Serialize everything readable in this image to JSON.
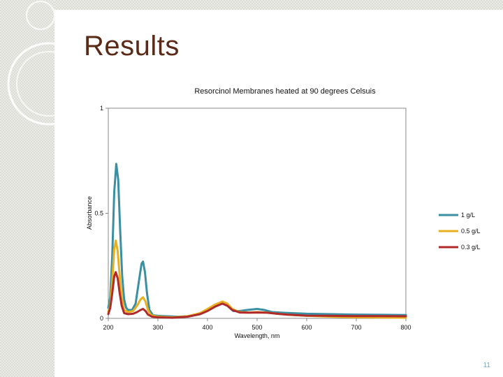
{
  "slide": {
    "title": "Results",
    "number": "11"
  },
  "colors": {
    "title": "#5a2a17",
    "series_1gL": "#3b8fa3",
    "series_05gL": "#e8b01e",
    "series_03gL": "#b02a2a",
    "slide_number": "#7aa9ba"
  },
  "chart_data": {
    "type": "line",
    "title": "Resorcinol Membranes heated at 90 degrees Celsuis",
    "xlabel": "Wavelength, nm",
    "ylabel": "Absorbance",
    "xlim": [
      200,
      800
    ],
    "ylim": [
      0,
      1
    ],
    "xticks": [
      "200",
      "300",
      "400",
      "500",
      "600",
      "700",
      "800"
    ],
    "yticks": [
      "0",
      "0.5",
      "1"
    ],
    "grid": false,
    "legend_position": "right",
    "series": [
      {
        "name": "1 g/L",
        "color": "#3b8fa3",
        "points": [
          [
            200,
            0.05
          ],
          [
            204,
            0.1
          ],
          [
            208,
            0.3
          ],
          [
            212,
            0.6
          ],
          [
            216,
            0.735
          ],
          [
            220,
            0.66
          ],
          [
            224,
            0.42
          ],
          [
            228,
            0.2
          ],
          [
            232,
            0.09
          ],
          [
            236,
            0.05
          ],
          [
            240,
            0.04
          ],
          [
            248,
            0.04
          ],
          [
            255,
            0.07
          ],
          [
            262,
            0.18
          ],
          [
            267,
            0.26
          ],
          [
            270,
            0.27
          ],
          [
            274,
            0.22
          ],
          [
            278,
            0.12
          ],
          [
            283,
            0.04
          ],
          [
            290,
            0.015
          ],
          [
            300,
            0.012
          ],
          [
            320,
            0.01
          ],
          [
            340,
            0.008
          ],
          [
            360,
            0.01
          ],
          [
            380,
            0.02
          ],
          [
            400,
            0.04
          ],
          [
            415,
            0.06
          ],
          [
            430,
            0.07
          ],
          [
            440,
            0.06
          ],
          [
            452,
            0.035
          ],
          [
            465,
            0.035
          ],
          [
            480,
            0.04
          ],
          [
            500,
            0.045
          ],
          [
            515,
            0.04
          ],
          [
            530,
            0.03
          ],
          [
            550,
            0.027
          ],
          [
            570,
            0.025
          ],
          [
            600,
            0.022
          ],
          [
            650,
            0.02
          ],
          [
            700,
            0.018
          ],
          [
            750,
            0.017
          ],
          [
            800,
            0.016
          ]
        ]
      },
      {
        "name": "0.5 g/L",
        "color": "#e8b01e",
        "points": [
          [
            200,
            0.03
          ],
          [
            204,
            0.06
          ],
          [
            208,
            0.18
          ],
          [
            212,
            0.33
          ],
          [
            215,
            0.37
          ],
          [
            219,
            0.32
          ],
          [
            223,
            0.2
          ],
          [
            227,
            0.1
          ],
          [
            232,
            0.04
          ],
          [
            240,
            0.03
          ],
          [
            250,
            0.035
          ],
          [
            258,
            0.06
          ],
          [
            265,
            0.09
          ],
          [
            270,
            0.1
          ],
          [
            275,
            0.08
          ],
          [
            280,
            0.04
          ],
          [
            286,
            0.015
          ],
          [
            300,
            0.008
          ],
          [
            330,
            0.005
          ],
          [
            360,
            0.01
          ],
          [
            385,
            0.025
          ],
          [
            400,
            0.045
          ],
          [
            415,
            0.065
          ],
          [
            430,
            0.08
          ],
          [
            440,
            0.07
          ],
          [
            450,
            0.045
          ],
          [
            465,
            0.03
          ],
          [
            485,
            0.028
          ],
          [
            500,
            0.03
          ],
          [
            520,
            0.028
          ],
          [
            540,
            0.022
          ],
          [
            560,
            0.018
          ],
          [
            600,
            0.012
          ],
          [
            650,
            0.008
          ],
          [
            700,
            0.005
          ],
          [
            750,
            0.004
          ],
          [
            800,
            0.003
          ]
        ]
      },
      {
        "name": "0.3 g/L",
        "color": "#b02a2a",
        "points": [
          [
            200,
            0.02
          ],
          [
            204,
            0.05
          ],
          [
            208,
            0.12
          ],
          [
            212,
            0.2
          ],
          [
            215,
            0.22
          ],
          [
            219,
            0.19
          ],
          [
            223,
            0.12
          ],
          [
            227,
            0.06
          ],
          [
            232,
            0.025
          ],
          [
            240,
            0.02
          ],
          [
            250,
            0.022
          ],
          [
            258,
            0.03
          ],
          [
            265,
            0.04
          ],
          [
            270,
            0.045
          ],
          [
            275,
            0.035
          ],
          [
            280,
            0.018
          ],
          [
            288,
            0.008
          ],
          [
            300,
            0.005
          ],
          [
            330,
            0.003
          ],
          [
            360,
            0.008
          ],
          [
            385,
            0.02
          ],
          [
            400,
            0.035
          ],
          [
            415,
            0.055
          ],
          [
            430,
            0.07
          ],
          [
            440,
            0.06
          ],
          [
            450,
            0.04
          ],
          [
            465,
            0.028
          ],
          [
            485,
            0.027
          ],
          [
            500,
            0.028
          ],
          [
            520,
            0.027
          ],
          [
            540,
            0.022
          ],
          [
            560,
            0.018
          ],
          [
            600,
            0.013
          ],
          [
            650,
            0.012
          ],
          [
            700,
            0.011
          ],
          [
            750,
            0.011
          ],
          [
            800,
            0.01
          ]
        ]
      }
    ]
  }
}
